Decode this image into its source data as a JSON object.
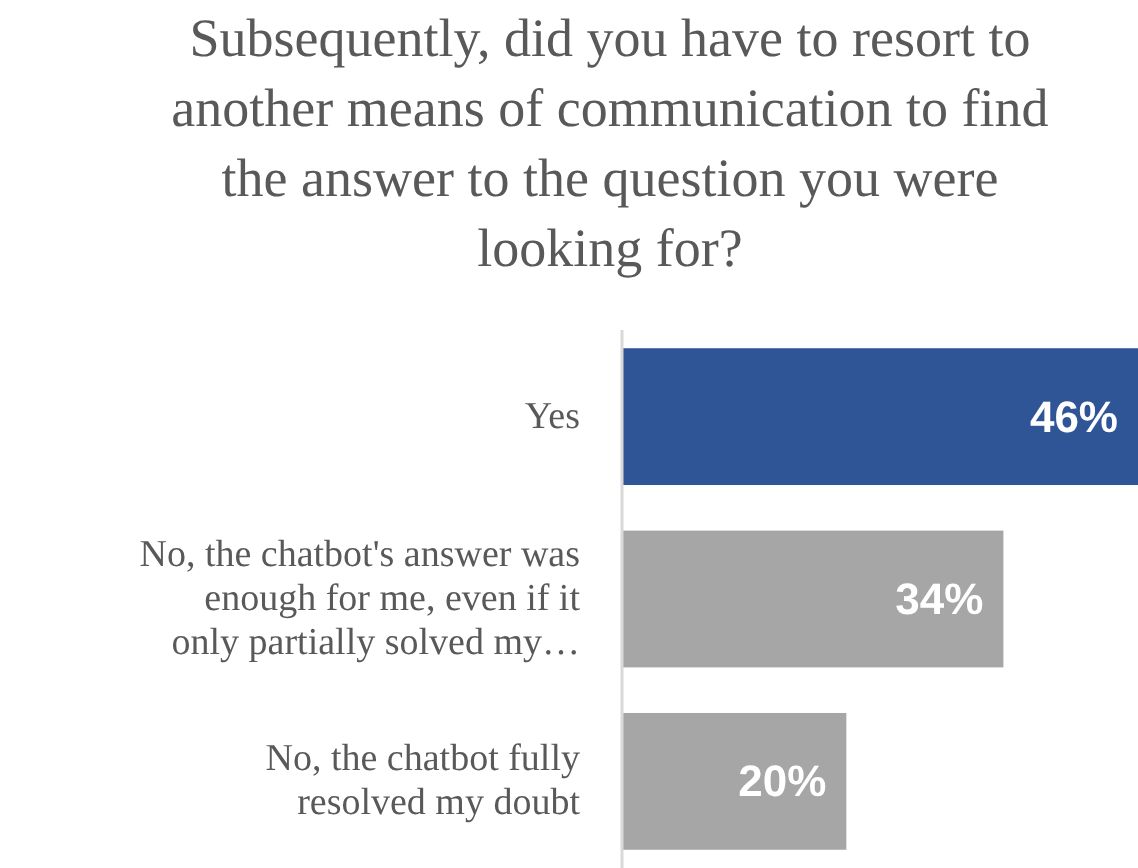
{
  "chart_data": {
    "type": "bar",
    "orientation": "horizontal",
    "title": "Subsequently, did you have to resort to another means of communication to find the answer to the question you were looking for?",
    "categories": [
      "Yes",
      "No, the chatbot's answer was enough for me, even if it only partially solved my…",
      "No, the chatbot fully resolved my doubt"
    ],
    "values": [
      46,
      34,
      20
    ],
    "colors": [
      "#2f5597",
      "#a6a6a6",
      "#a6a6a6"
    ],
    "value_labels": [
      "46%",
      "34%",
      "20%"
    ],
    "xlim": [
      0,
      46
    ]
  }
}
